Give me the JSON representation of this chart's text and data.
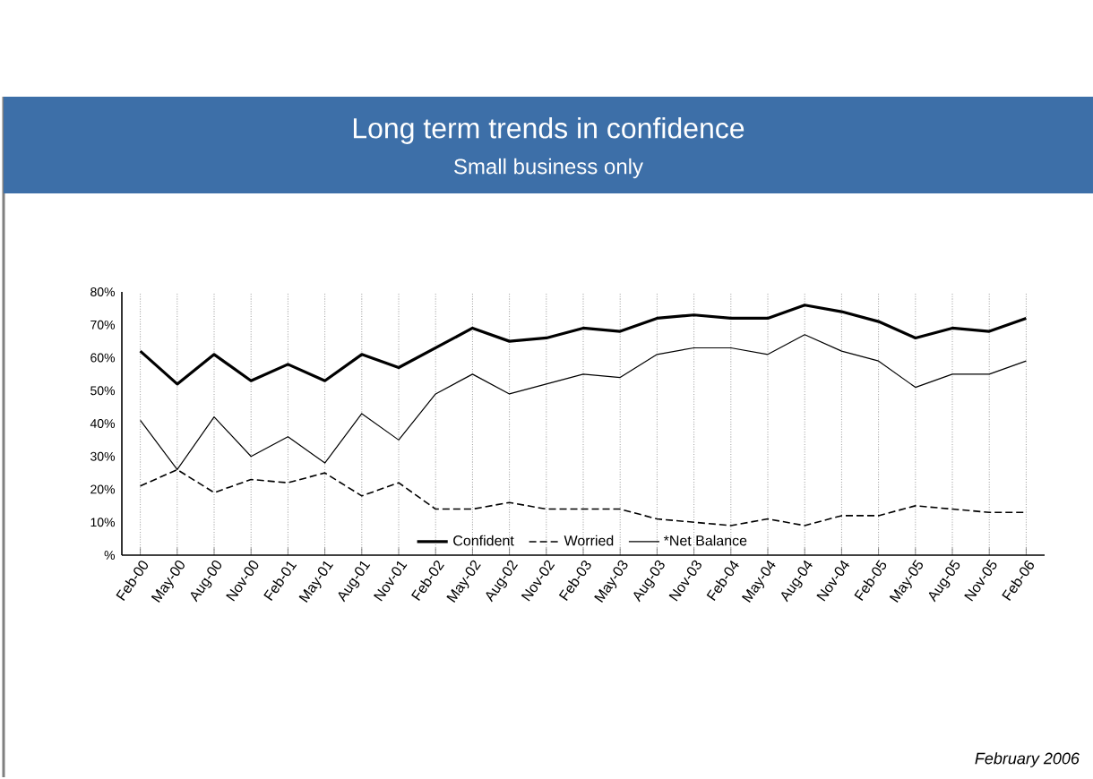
{
  "chart_data": {
    "type": "line",
    "title": "Long term trends in confidence",
    "subtitle": "Small business only",
    "categories": [
      "Feb-00",
      "May-00",
      "Aug-00",
      "Nov-00",
      "Feb-01",
      "May-01",
      "Aug-01",
      "Nov-01",
      "Feb-02",
      "May-02",
      "Aug-02",
      "Nov-02",
      "Feb-03",
      "May-03",
      "Aug-03",
      "Nov-03",
      "Feb-04",
      "May-04",
      "Aug-04",
      "Nov-04",
      "Feb-05",
      "May-05",
      "Aug-05",
      "Nov-05",
      "Feb-06"
    ],
    "series": [
      {
        "name": "Confident",
        "color": "#000000",
        "line_style": "solid",
        "values": [
          62,
          52,
          61,
          53,
          58,
          53,
          61,
          57,
          63,
          69,
          65,
          66,
          69,
          68,
          72,
          73,
          72,
          72,
          76,
          74,
          71,
          66,
          69,
          68,
          72
        ]
      },
      {
        "name": "Worried",
        "color": "#000000",
        "line_style": "dashed",
        "values": [
          21,
          26,
          19,
          23,
          22,
          25,
          18,
          22,
          14,
          14,
          16,
          14,
          14,
          14,
          11,
          10,
          9,
          11,
          9,
          12,
          12,
          15,
          14,
          13,
          13
        ]
      },
      {
        "name": "*Net Balance",
        "color": "#000000",
        "line_style": "solid",
        "values": [
          41,
          26,
          42,
          30,
          36,
          28,
          43,
          35,
          49,
          55,
          49,
          52,
          55,
          54,
          61,
          63,
          63,
          61,
          67,
          62,
          59,
          51,
          55,
          55,
          59
        ]
      }
    ],
    "ylim": [
      0,
      80
    ],
    "yticks": [
      {
        "value": 0,
        "label": "%"
      },
      {
        "value": 10,
        "label": "10%"
      },
      {
        "value": 20,
        "label": "20%"
      },
      {
        "value": 30,
        "label": "30%"
      },
      {
        "value": 40,
        "label": "40%"
      },
      {
        "value": 50,
        "label": "50%"
      },
      {
        "value": 60,
        "label": "60%"
      },
      {
        "value": 70,
        "label": "70%"
      },
      {
        "value": 80,
        "label": "80%"
      }
    ],
    "grid": "x",
    "legend": "bottom",
    "marker": "none",
    "annotations": [
      "February 2006"
    ]
  }
}
